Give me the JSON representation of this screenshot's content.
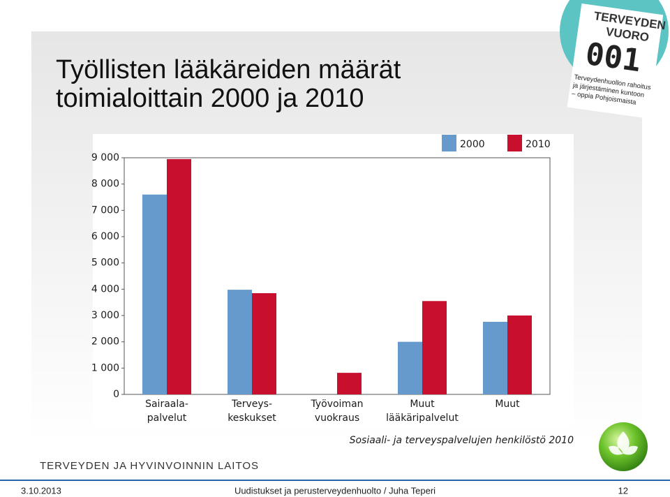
{
  "slide": {
    "title_lines": [
      "Työllisten lääkäreiden määrät",
      "toimialoittain 2000 ja 2010"
    ],
    "logo_title_lines": [
      "TERVEYDEN",
      "VUORO"
    ],
    "logo_number": "001",
    "logo_subtitle_lines": [
      "Terveydenhuollon rahoitus",
      "ja järjestäminen kuntoon",
      "– oppia Pohjoismaista"
    ],
    "organization": "TERVEYDEN JA HYVINVOINNIN LAITOS",
    "footer_date": "3.10.2013",
    "footer_text": "Uudistukset ja perusterveydenhuolto / Juha Teperi",
    "page_number": "12"
  },
  "chart_data": {
    "type": "bar",
    "categories": [
      "Sairaala-\npalvelut",
      "Terveys-\nkeskukset",
      "Työvoiman\nvuokraus",
      "Muut\nlääkäripalvelut",
      "Muut"
    ],
    "series": [
      {
        "name": "2000",
        "color": "#6699cc",
        "values": [
          7600,
          3980,
          null,
          2000,
          2760
        ]
      },
      {
        "name": "2010",
        "color": "#c8102e",
        "values": [
          8950,
          3850,
          820,
          3550,
          3000
        ]
      }
    ],
    "ylim": [
      0,
      9000
    ],
    "yticks": [
      0,
      {
        "value": 1000,
        "label": "1 000"
      },
      {
        "value": 2000,
        "label": "2 000"
      },
      {
        "value": 3000,
        "label": "3 000"
      },
      {
        "value": 4000,
        "label": "4 000"
      },
      {
        "value": 5000,
        "label": "5 000"
      },
      {
        "value": 6000,
        "label": "6 000"
      },
      {
        "value": 7000,
        "label": "7 000"
      },
      {
        "value": 8000,
        "label": "8 000"
      },
      {
        "value": 9000,
        "label": "9 000"
      }
    ],
    "grid": false,
    "legend": "top-right",
    "source": "Sosiaali- ja terveyspalvelujen henkilöstö 2010"
  }
}
